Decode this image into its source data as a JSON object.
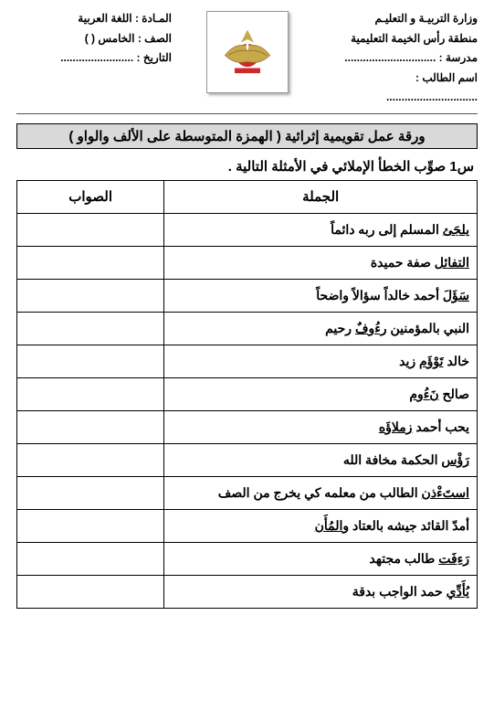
{
  "header": {
    "right": {
      "line1": "وزارة التربيـة و التعليـم",
      "line2": "منطقة رأس الخيمة التعليمية",
      "school_label": "مدرسة  :",
      "school_dots": "..............................",
      "student_label": "اسم الطالب :",
      "student_dots": ".............................."
    },
    "left": {
      "subject_label": "المـادة :",
      "subject_value": "اللغة العربية",
      "grade_label": "الصف :",
      "grade_value": "الخامس   (      )",
      "date_label": "التاريخ :",
      "date_dots": "........................"
    }
  },
  "title": "ورقة عمل تقويمية إثرائية ( الهمزة المتوسطة على الألف والواو )",
  "question": "س1 صوِّب الخطأ الإملائي في الأمثلة التالية  .",
  "table": {
    "head_sentence": "الجملة",
    "head_correct": "الصواب",
    "rows": [
      {
        "pre": "",
        "u": "يلجَئ",
        "post": " المسلم إلى ربه دائماً"
      },
      {
        "pre": "",
        "u": "التفائل",
        "post": " صفة حميدة"
      },
      {
        "pre": "",
        "u": "سَؤَلَ",
        "post": " أحمد خالداً سؤالاً واضحاً"
      },
      {
        "pre": "النبي بالمؤمنين ",
        "u": "رءُوفٌ",
        "post": " رحيم"
      },
      {
        "pre": "خالد ",
        "u": "تَوْؤَم",
        "post": " زيد"
      },
      {
        "pre": "صالح ",
        "u": "نَءُوم",
        "post": ""
      },
      {
        "pre": "يحب أحمد ",
        "u": "زملاؤَه",
        "post": ""
      },
      {
        "pre": "",
        "u": "رَؤْس",
        "post": " الحكمة مخافة الله"
      },
      {
        "pre": "",
        "u": "استَءْذن",
        "post": " الطالب من معلمه كي يخرج من الصف"
      },
      {
        "pre": "أمدّ القائد جيشه بالعتاد و",
        "u": "المُأَن",
        "post": ""
      },
      {
        "pre": "",
        "u": "رَءِفَت",
        "post": " طالب مجتهد"
      },
      {
        "pre": "",
        "u": "يُأَدِّي",
        "post": " حمد الواجب بدقة"
      }
    ]
  },
  "colors": {
    "border": "#000000",
    "titlebar_bg": "#d9d9d9",
    "text": "#000000"
  }
}
